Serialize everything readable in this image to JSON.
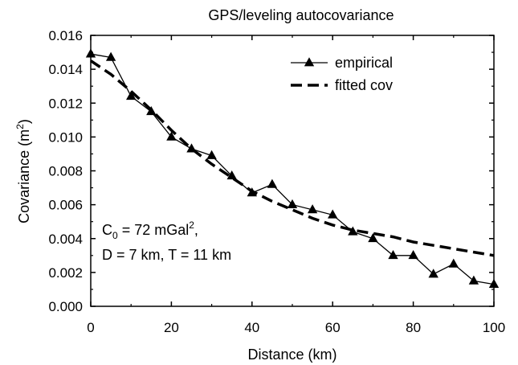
{
  "chart_data": {
    "type": "line",
    "title": "GPS/leveling autocovariance",
    "xlabel": "Distance (km)",
    "ylabel": {
      "main": "Covariance (m",
      "sup": "2",
      "close": ")"
    },
    "xlim": [
      0,
      100
    ],
    "ylim": [
      0,
      0.016
    ],
    "x_ticks": [
      {
        "value": 0,
        "label": "0"
      },
      {
        "value": 20,
        "label": "20"
      },
      {
        "value": 40,
        "label": "40"
      },
      {
        "value": 60,
        "label": "60"
      },
      {
        "value": 80,
        "label": "80"
      },
      {
        "value": 100,
        "label": "100"
      }
    ],
    "y_ticks": [
      {
        "value": 0,
        "label": "0.000"
      },
      {
        "value": 0.002,
        "label": "0.002"
      },
      {
        "value": 0.004,
        "label": "0.004"
      },
      {
        "value": 0.006,
        "label": "0.006"
      },
      {
        "value": 0.008,
        "label": "0.008"
      },
      {
        "value": 0.01,
        "label": "0.010"
      },
      {
        "value": 0.012,
        "label": "0.012"
      },
      {
        "value": 0.014,
        "label": "0.014"
      },
      {
        "value": 0.016,
        "label": "0.016"
      }
    ],
    "legend_position": "top-right",
    "grid": false,
    "series": [
      {
        "name": "empirical",
        "style": "solid line with triangle markers",
        "color": "#000000",
        "x": [
          0,
          5,
          10,
          15,
          20,
          25,
          30,
          35,
          40,
          45,
          50,
          55,
          60,
          65,
          70,
          75,
          80,
          85,
          90,
          95,
          100
        ],
        "y": [
          0.0149,
          0.0147,
          0.0124,
          0.0115,
          0.01,
          0.0093,
          0.0089,
          0.0077,
          0.0067,
          0.0072,
          0.006,
          0.0057,
          0.0054,
          0.0044,
          0.004,
          0.003,
          0.003,
          0.0019,
          0.0025,
          0.0015,
          0.0013
        ]
      },
      {
        "name": "fitted cov",
        "style": "dashed line",
        "color": "#000000",
        "x": [
          0,
          5,
          10,
          15,
          20,
          25,
          30,
          35,
          40,
          45,
          50,
          55,
          60,
          65,
          70,
          75,
          80,
          85,
          90,
          95,
          100
        ],
        "y": [
          0.0145,
          0.0137,
          0.0127,
          0.0116,
          0.0104,
          0.0093,
          0.0084,
          0.0076,
          0.0068,
          0.0062,
          0.0057,
          0.0052,
          0.0048,
          0.0045,
          0.0043,
          0.0041,
          0.0038,
          0.0036,
          0.0034,
          0.0032,
          0.003
        ]
      }
    ],
    "annotations": [
      {
        "parts": [
          {
            "text": "C",
            "shift": "none"
          },
          {
            "text": "0",
            "shift": "sub"
          },
          {
            "text": " = 72 mGal",
            "shift": "none"
          },
          {
            "text": "2",
            "shift": "super"
          },
          {
            "text": ",",
            "shift": "none"
          }
        ]
      },
      {
        "parts": [
          {
            "text": "D = 7 km,   T = 11 km",
            "shift": "none"
          }
        ]
      }
    ]
  }
}
